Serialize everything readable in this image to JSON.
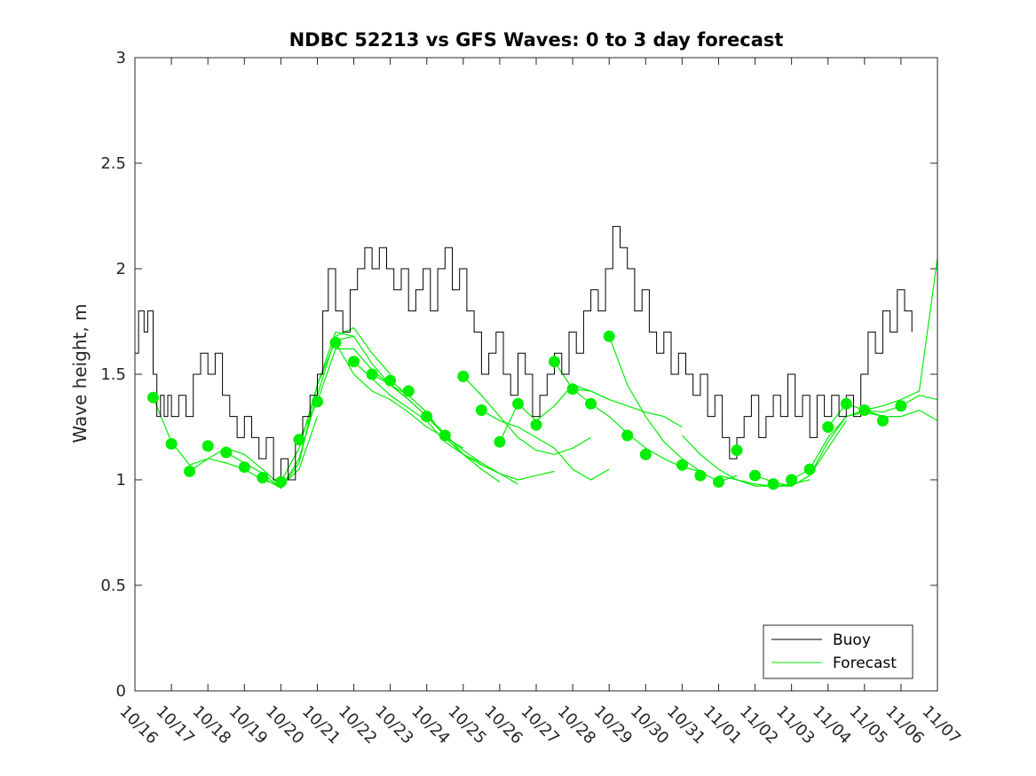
{
  "chart_data": {
    "type": "line",
    "title": "NDBC 52213 vs GFS Waves: 0 to 3 day forecast",
    "xlabel": "",
    "ylabel": "Wave height, m",
    "ylim": [
      0,
      3
    ],
    "xlim": [
      0,
      22
    ],
    "y_ticks": [
      "0",
      "0.5",
      "1",
      "1.5",
      "2",
      "2.5",
      "3"
    ],
    "x_ticks": [
      "10/16",
      "10/17",
      "10/18",
      "10/19",
      "10/20",
      "10/21",
      "10/22",
      "10/23",
      "10/24",
      "10/25",
      "10/26",
      "10/27",
      "10/28",
      "10/29",
      "10/30",
      "10/31",
      "11/01",
      "11/02",
      "11/03",
      "11/04",
      "11/05",
      "11/06",
      "11/07"
    ],
    "x_units": "days since 10/16",
    "legend_position": "bottom-right",
    "legend": [
      "Buoy",
      "Forecast"
    ],
    "colors": {
      "buoy": "#000000",
      "forecast": "#00ee00"
    },
    "series": [
      {
        "name": "Buoy",
        "x": [
          0,
          0.1,
          0.25,
          0.35,
          0.5,
          0.6,
          0.7,
          0.8,
          0.9,
          1.0,
          1.2,
          1.4,
          1.6,
          1.8,
          2.0,
          2.2,
          2.4,
          2.6,
          2.8,
          3.0,
          3.2,
          3.4,
          3.6,
          3.8,
          4.0,
          4.2,
          4.4,
          4.6,
          4.8,
          5.0,
          5.15,
          5.3,
          5.5,
          5.7,
          5.9,
          6.1,
          6.3,
          6.5,
          6.7,
          6.9,
          7.1,
          7.3,
          7.5,
          7.7,
          7.9,
          8.1,
          8.3,
          8.5,
          8.7,
          8.9,
          9.1,
          9.3,
          9.5,
          9.7,
          9.9,
          10.1,
          10.3,
          10.5,
          10.7,
          10.9,
          11.1,
          11.3,
          11.5,
          11.7,
          11.9,
          12.1,
          12.3,
          12.5,
          12.7,
          12.9,
          13.1,
          13.3,
          13.5,
          13.7,
          13.9,
          14.1,
          14.3,
          14.5,
          14.7,
          14.9,
          15.1,
          15.3,
          15.5,
          15.7,
          15.9,
          16.1,
          16.3,
          16.5,
          16.7,
          16.9,
          17.1,
          17.3,
          17.5,
          17.7,
          17.9,
          18.1,
          18.3,
          18.5,
          18.7,
          18.9,
          19.1,
          19.3,
          19.5,
          19.7,
          19.9,
          20.1,
          20.3,
          20.5,
          20.7,
          20.9,
          21.1,
          21.3
        ],
        "values": [
          1.6,
          1.8,
          1.7,
          1.8,
          1.5,
          1.3,
          1.4,
          1.3,
          1.4,
          1.3,
          1.4,
          1.3,
          1.5,
          1.6,
          1.5,
          1.6,
          1.4,
          1.3,
          1.2,
          1.3,
          1.2,
          1.1,
          1.2,
          1.0,
          1.1,
          1.0,
          1.2,
          1.3,
          1.4,
          1.5,
          1.8,
          2.0,
          1.8,
          1.7,
          1.9,
          2.0,
          2.1,
          2.0,
          2.1,
          2.0,
          1.9,
          2.0,
          1.8,
          1.9,
          2.0,
          1.8,
          2.0,
          2.1,
          1.9,
          2.0,
          1.8,
          1.7,
          1.5,
          1.6,
          1.7,
          1.5,
          1.4,
          1.6,
          1.5,
          1.3,
          1.4,
          1.5,
          1.6,
          1.5,
          1.7,
          1.6,
          1.8,
          1.9,
          1.8,
          2.0,
          2.2,
          2.1,
          2.0,
          1.8,
          1.9,
          1.7,
          1.6,
          1.7,
          1.5,
          1.6,
          1.5,
          1.4,
          1.5,
          1.3,
          1.4,
          1.2,
          1.1,
          1.2,
          1.3,
          1.4,
          1.2,
          1.3,
          1.4,
          1.3,
          1.5,
          1.3,
          1.4,
          1.2,
          1.4,
          1.3,
          1.4,
          1.3,
          1.4,
          1.3,
          1.5,
          1.7,
          1.6,
          1.8,
          1.7,
          1.9,
          1.8,
          1.7
        ]
      },
      {
        "name": "Forecast",
        "markers": {
          "x": [
            0.5,
            1.0,
            1.5,
            2.0,
            2.5,
            3.0,
            3.5,
            4.0,
            4.5,
            5.0,
            5.5,
            6.0,
            6.5,
            7.0,
            7.5,
            8.0,
            8.5,
            9.0,
            9.5,
            10.0,
            10.5,
            11.0,
            11.5,
            12.0,
            12.5,
            13.0,
            13.5,
            14.0,
            15.0,
            15.5,
            16.0,
            16.5,
            17.0,
            17.5,
            18.0,
            18.5,
            19.0,
            19.5,
            20.0,
            20.5,
            21.0
          ],
          "values": [
            1.39,
            1.17,
            1.04,
            1.16,
            1.13,
            1.06,
            1.01,
            0.99,
            1.19,
            1.37,
            1.65,
            1.56,
            1.5,
            1.47,
            1.42,
            1.3,
            1.21,
            1.49,
            1.33,
            1.18,
            1.36,
            1.26,
            1.56,
            1.43,
            1.36,
            1.68,
            1.21,
            1.12,
            1.07,
            1.02,
            0.99,
            1.14,
            1.02,
            0.98,
            1.0,
            1.05,
            1.25,
            1.36,
            1.33,
            1.28,
            1.35
          ]
        },
        "runs": [
          {
            "x": [
              0.5,
              1.0,
              1.5,
              2.0,
              2.5,
              3.0,
              3.5,
              4.0
            ],
            "values": [
              1.39,
              1.18,
              1.07,
              1.1,
              1.08,
              1.05,
              1.0,
              0.97
            ]
          },
          {
            "x": [
              1.5,
              2.0,
              2.5,
              3.0,
              3.5,
              4.0,
              4.5,
              5.0
            ],
            "values": [
              1.04,
              1.1,
              1.15,
              1.12,
              1.05,
              0.97,
              1.05,
              1.3
            ]
          },
          {
            "x": [
              2.5,
              3.0,
              3.5,
              4.0,
              4.5,
              5.0,
              5.5,
              6.0
            ],
            "values": [
              1.13,
              1.08,
              1.03,
              0.96,
              1.08,
              1.45,
              1.7,
              1.68
            ]
          },
          {
            "x": [
              3.5,
              4.0,
              4.5,
              5.0,
              5.5,
              6.0,
              6.5,
              7.0
            ],
            "values": [
              1.01,
              0.96,
              1.1,
              1.4,
              1.68,
              1.72,
              1.6,
              1.5
            ]
          },
          {
            "x": [
              4.0,
              4.5,
              5.0,
              5.5,
              6.0,
              6.5,
              7.0,
              7.5
            ],
            "values": [
              0.99,
              1.15,
              1.45,
              1.66,
              1.68,
              1.55,
              1.45,
              1.4
            ]
          },
          {
            "x": [
              4.5,
              5.0,
              5.5,
              6.0,
              6.5,
              7.0,
              7.5,
              8.0
            ],
            "values": [
              1.19,
              1.37,
              1.62,
              1.62,
              1.52,
              1.45,
              1.38,
              1.3
            ]
          },
          {
            "x": [
              5.5,
              6.0,
              6.5,
              7.0,
              7.5,
              8.0,
              8.5,
              9.0
            ],
            "values": [
              1.65,
              1.5,
              1.42,
              1.38,
              1.32,
              1.25,
              1.2,
              1.15
            ]
          },
          {
            "x": [
              6.0,
              6.5,
              7.0,
              7.5,
              8.0,
              8.5,
              9.0,
              9.5
            ],
            "values": [
              1.56,
              1.48,
              1.4,
              1.34,
              1.28,
              1.18,
              1.12,
              1.08
            ]
          },
          {
            "x": [
              6.5,
              7.0,
              7.5,
              8.0,
              8.5,
              9.0,
              9.5,
              10.0
            ],
            "values": [
              1.5,
              1.45,
              1.38,
              1.3,
              1.22,
              1.12,
              1.05,
              0.99
            ]
          },
          {
            "x": [
              7.0,
              7.5,
              8.0,
              8.5,
              9.0,
              9.5,
              10.0,
              10.5
            ],
            "values": [
              1.47,
              1.4,
              1.32,
              1.2,
              1.12,
              1.07,
              1.03,
              0.98
            ]
          },
          {
            "x": [
              8.0,
              8.5,
              9.0,
              9.5,
              10.0,
              10.5,
              11.0,
              11.5
            ],
            "values": [
              1.3,
              1.21,
              1.14,
              1.08,
              1.03,
              1.0,
              1.02,
              1.04
            ]
          },
          {
            "x": [
              9.0,
              9.5,
              10.0,
              10.5,
              11.0,
              11.5,
              12.0,
              12.5
            ],
            "values": [
              1.49,
              1.4,
              1.3,
              1.2,
              1.14,
              1.12,
              1.15,
              1.2
            ]
          },
          {
            "x": [
              9.5,
              10.0,
              10.5,
              11.0,
              11.5,
              12.0,
              12.5,
              13.0
            ],
            "values": [
              1.33,
              1.28,
              1.25,
              1.2,
              1.15,
              1.05,
              1.0,
              1.05
            ]
          },
          {
            "x": [
              10.0,
              10.5,
              11.0,
              11.5,
              12.0,
              12.5,
              13.0
            ],
            "values": [
              1.18,
              1.36,
              1.28,
              1.35,
              1.45,
              1.42,
              1.38
            ]
          },
          {
            "x": [
              11.5,
              12.0,
              12.5,
              13.0,
              13.5,
              14.0,
              14.5,
              15.0
            ],
            "values": [
              1.56,
              1.43,
              1.42,
              1.38,
              1.35,
              1.32,
              1.3,
              1.25
            ]
          },
          {
            "x": [
              12.0,
              12.5,
              13.0,
              13.5,
              14.0,
              14.5,
              15.0,
              15.5
            ],
            "values": [
              1.43,
              1.36,
              1.3,
              1.22,
              1.15,
              1.1,
              1.06,
              1.04
            ]
          },
          {
            "x": [
              13.0,
              13.5,
              14.0,
              14.5,
              15.0,
              15.5,
              16.0,
              16.5
            ],
            "values": [
              1.68,
              1.45,
              1.3,
              1.18,
              1.1,
              1.04,
              0.99,
              1.02
            ]
          },
          {
            "x": [
              15.0,
              15.5,
              16.0,
              16.5,
              17.0,
              17.5,
              18.0,
              18.5
            ],
            "values": [
              1.21,
              1.12,
              1.05,
              1.0,
              0.97,
              0.97,
              0.98,
              1.0
            ]
          },
          {
            "x": [
              16.0,
              16.5,
              17.0,
              17.5,
              18.0,
              18.5,
              19.0,
              19.5
            ],
            "values": [
              1.02,
              1.0,
              0.98,
              0.97,
              0.97,
              1.02,
              1.15,
              1.28
            ]
          },
          {
            "x": [
              17.0,
              17.5,
              18.0,
              18.5,
              19.0,
              19.5,
              20.0,
              20.5
            ],
            "values": [
              1.02,
              0.99,
              0.97,
              1.02,
              1.18,
              1.3,
              1.32,
              1.3
            ]
          },
          {
            "x": [
              18.0,
              18.5,
              19.0,
              19.5,
              20.0,
              20.5,
              21.0,
              21.5,
              22.0
            ],
            "values": [
              1.0,
              1.05,
              1.2,
              1.3,
              1.33,
              1.35,
              1.38,
              1.42,
              2.05
            ]
          },
          {
            "x": [
              19.0,
              19.5,
              20.0,
              20.5,
              21.0,
              21.5,
              22.0
            ],
            "values": [
              1.25,
              1.36,
              1.33,
              1.32,
              1.35,
              1.4,
              1.38
            ]
          },
          {
            "x": [
              20.0,
              20.5,
              21.0,
              21.5,
              22.0
            ],
            "values": [
              1.33,
              1.3,
              1.3,
              1.33,
              1.28
            ]
          }
        ]
      }
    ]
  }
}
